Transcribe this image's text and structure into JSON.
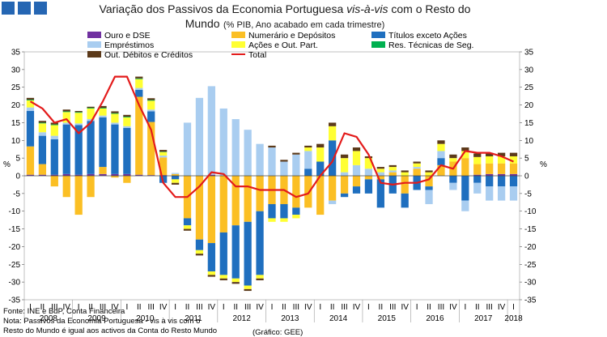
{
  "chart_data": {
    "type": "bar",
    "stacked": true,
    "title_main": "Variação dos Passivos da Economia Portuguesa",
    "title_italic": "vis-à-vis",
    "title_rest": "com o Resto do",
    "title_line2": "Mundo",
    "subtitle": "(% PIB, Ano acabado em cada trimestre)",
    "ylabel_left": "%",
    "ylabel_right": "%",
    "ylim": [
      -35,
      35
    ],
    "y_ticks": [
      -35,
      -30,
      -25,
      -20,
      -15,
      -10,
      -5,
      0,
      5,
      10,
      15,
      20,
      25,
      30,
      35
    ],
    "quarter_labels": [
      "I",
      "II",
      "III",
      "IV"
    ],
    "years": [
      "2008",
      "2009",
      "2010",
      "2011",
      "2012",
      "2013",
      "2014",
      "2015",
      "2016",
      "2017",
      "2018"
    ],
    "categories": [
      "2008 I",
      "2008 II",
      "2008 III",
      "2008 IV",
      "2009 I",
      "2009 II",
      "2009 III",
      "2009 IV",
      "2010 I",
      "2010 II",
      "2010 III",
      "2010 IV",
      "2011 I",
      "2011 II",
      "2011 III",
      "2011 IV",
      "2012 I",
      "2012 II",
      "2012 III",
      "2012 IV",
      "2013 I",
      "2013 II",
      "2013 III",
      "2013 IV",
      "2014 I",
      "2014 II",
      "2014 III",
      "2014 IV",
      "2015 I",
      "2015 II",
      "2015 III",
      "2015 IV",
      "2016 I",
      "2016 II",
      "2016 III",
      "2016 IV",
      "2017 I",
      "2017 II",
      "2017 III",
      "2017 IV",
      "2018 I"
    ],
    "series": [
      {
        "name": "Ouro e DSE",
        "color": "#7030a0",
        "values": [
          0.3,
          0.3,
          0.3,
          0.5,
          0.3,
          0.5,
          0.5,
          0.5,
          0.5,
          0.3,
          0.2,
          0.2,
          0,
          0,
          0,
          0.3,
          0,
          0,
          0,
          0,
          0,
          0,
          0,
          0,
          0,
          0,
          0,
          0,
          0,
          0,
          0,
          0,
          0,
          0,
          0,
          0,
          0,
          0.3,
          0.5,
          0.5,
          0.5
        ]
      },
      {
        "name": "Numerário e Depósitos",
        "color": "#fbbf24",
        "values": [
          8,
          3,
          -3,
          -6,
          -11,
          -6,
          2,
          -0.5,
          -2,
          22,
          15,
          5,
          0.5,
          -12,
          -18,
          -19,
          -16,
          -14,
          -13,
          -10,
          -8,
          -8,
          -9,
          -9,
          -11,
          -7,
          -5,
          -3,
          -1,
          -1,
          1,
          -5,
          2,
          -3,
          3,
          4,
          5,
          3,
          3,
          3,
          3
        ]
      },
      {
        "name": "Títulos exceto Ações",
        "color": "#1f6fbf",
        "values": [
          10,
          8,
          10,
          14,
          14,
          15,
          14,
          14,
          13,
          2,
          3,
          -2,
          -1,
          -2,
          -3,
          -8,
          -12,
          -15,
          -18,
          -18,
          -4,
          -4,
          -2,
          2,
          4,
          10,
          -1,
          -2,
          -4,
          -8,
          -5,
          -4,
          -4,
          -1,
          2,
          -2,
          -7,
          -2,
          -3,
          -3,
          -3
        ]
      },
      {
        "name": "Empréstimos",
        "color": "#a9cdf0",
        "values": [
          1,
          1,
          1,
          0.5,
          0.5,
          0.5,
          0.5,
          0.5,
          0.5,
          0.5,
          0.5,
          0.5,
          0.3,
          15,
          22,
          25,
          19,
          16,
          13,
          9,
          8,
          4,
          6,
          5,
          0,
          -1,
          1,
          3,
          2,
          1,
          0.5,
          0,
          0.5,
          -4,
          2,
          -2,
          -3,
          -3,
          -4,
          -4,
          -4
        ]
      },
      {
        "name": "Ações e Out. Part.",
        "color": "#ffff33",
        "values": [
          2,
          2.5,
          3,
          3,
          3,
          3,
          2,
          2.5,
          2.5,
          2.5,
          2.5,
          1,
          -1,
          -1,
          -1,
          -1,
          -1,
          -1,
          -1,
          -1,
          -1,
          -1,
          -1,
          1,
          4,
          4,
          4,
          4,
          3,
          1,
          1,
          1,
          1,
          1,
          2,
          1,
          2,
          2,
          2,
          2,
          2
        ]
      },
      {
        "name": "Res. Técnicas de Seg.",
        "color": "#00b050",
        "values": [
          0.2,
          0.2,
          0.2,
          0.2,
          0.2,
          0.2,
          0.2,
          0.2,
          0.2,
          0.2,
          0.2,
          0.1,
          0,
          0,
          0,
          0,
          0,
          0,
          0,
          0,
          0,
          0,
          0,
          0,
          0,
          0,
          0,
          0,
          0,
          0,
          0,
          0,
          0,
          0,
          0,
          0,
          0,
          0,
          0,
          0,
          0
        ]
      },
      {
        "name": "Out. Débitos e Créditos",
        "color": "#5c3a1a",
        "values": [
          0.5,
          0.5,
          0.5,
          0.5,
          0.3,
          0.3,
          0.5,
          0.5,
          0.5,
          0.5,
          0.5,
          0.5,
          -0.5,
          -0.5,
          -0.5,
          -0.5,
          -0.5,
          -0.5,
          -0.5,
          -0.5,
          0.5,
          0.5,
          0.5,
          0.5,
          1,
          1,
          1,
          1,
          0.5,
          0.5,
          0.5,
          0.5,
          0.5,
          0.5,
          1,
          1,
          1,
          1,
          1,
          1,
          1
        ]
      }
    ],
    "total": {
      "name": "Total",
      "color": "#e31b1b",
      "values": [
        21,
        19,
        15,
        16,
        12,
        15,
        21,
        28,
        28,
        20,
        13,
        -2,
        -6,
        -6,
        -3,
        1,
        0.5,
        -3,
        -3,
        -4,
        -4,
        -4,
        -6,
        -5,
        0,
        4,
        12,
        11,
        6,
        -2,
        -2.5,
        -2,
        -2,
        -1,
        3,
        2,
        7,
        6.5,
        6.5,
        5.5,
        4
      ]
    },
    "legend": [
      "Ouro e DSE",
      "Numerário e Depósitos",
      "Títulos exceto Ações",
      "Empréstimos",
      "Ações e Out. Part.",
      "Res. Técnicas de Seg.",
      "Out. Débitos e Créditos",
      "Total"
    ]
  },
  "footer": {
    "source": "Fonte: INE e BdP, Conta Financeira",
    "note_line1": "Nota: Passivos da Economia Portuguesa - vis à vis com o",
    "note_line2": "Resto do Mundo é igual aos activos da Conta do Resto Mundo",
    "credit": "(Gráfico: GEE)"
  }
}
